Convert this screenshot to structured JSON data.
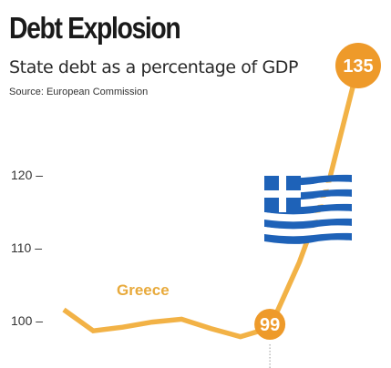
{
  "header": {
    "title": "Debt Explosion",
    "subtitle": "State debt as a percentage of GDP",
    "source": "Source: European Commission"
  },
  "colors": {
    "line": "#F2B246",
    "series_label": "#E8AA3C",
    "bubble": "#EE9A2A",
    "flag_blue": "#1E62B8",
    "flag_white": "#ffffff"
  },
  "icons": [
    "greek-flag-icon"
  ],
  "chart_data": {
    "type": "line",
    "title": "Debt Explosion",
    "subtitle": "State debt as a percentage of GDP",
    "xlabel": "",
    "ylabel": "",
    "ylim": [
      97,
      139
    ],
    "yticks": [
      {
        "value": 100,
        "label": "100 –"
      },
      {
        "value": 110,
        "label": "110 –"
      },
      {
        "value": 120,
        "label": "120 –"
      }
    ],
    "grid": false,
    "legend": "none",
    "series": [
      {
        "name": "Greece",
        "points": [
          101.5,
          98.6,
          99.1,
          99.8,
          100.2,
          98.9,
          97.8,
          99,
          108,
          119,
          135
        ]
      }
    ],
    "annotations": [
      {
        "point_index": 7,
        "label": "99"
      },
      {
        "point_index": 10,
        "label": "135"
      }
    ]
  }
}
